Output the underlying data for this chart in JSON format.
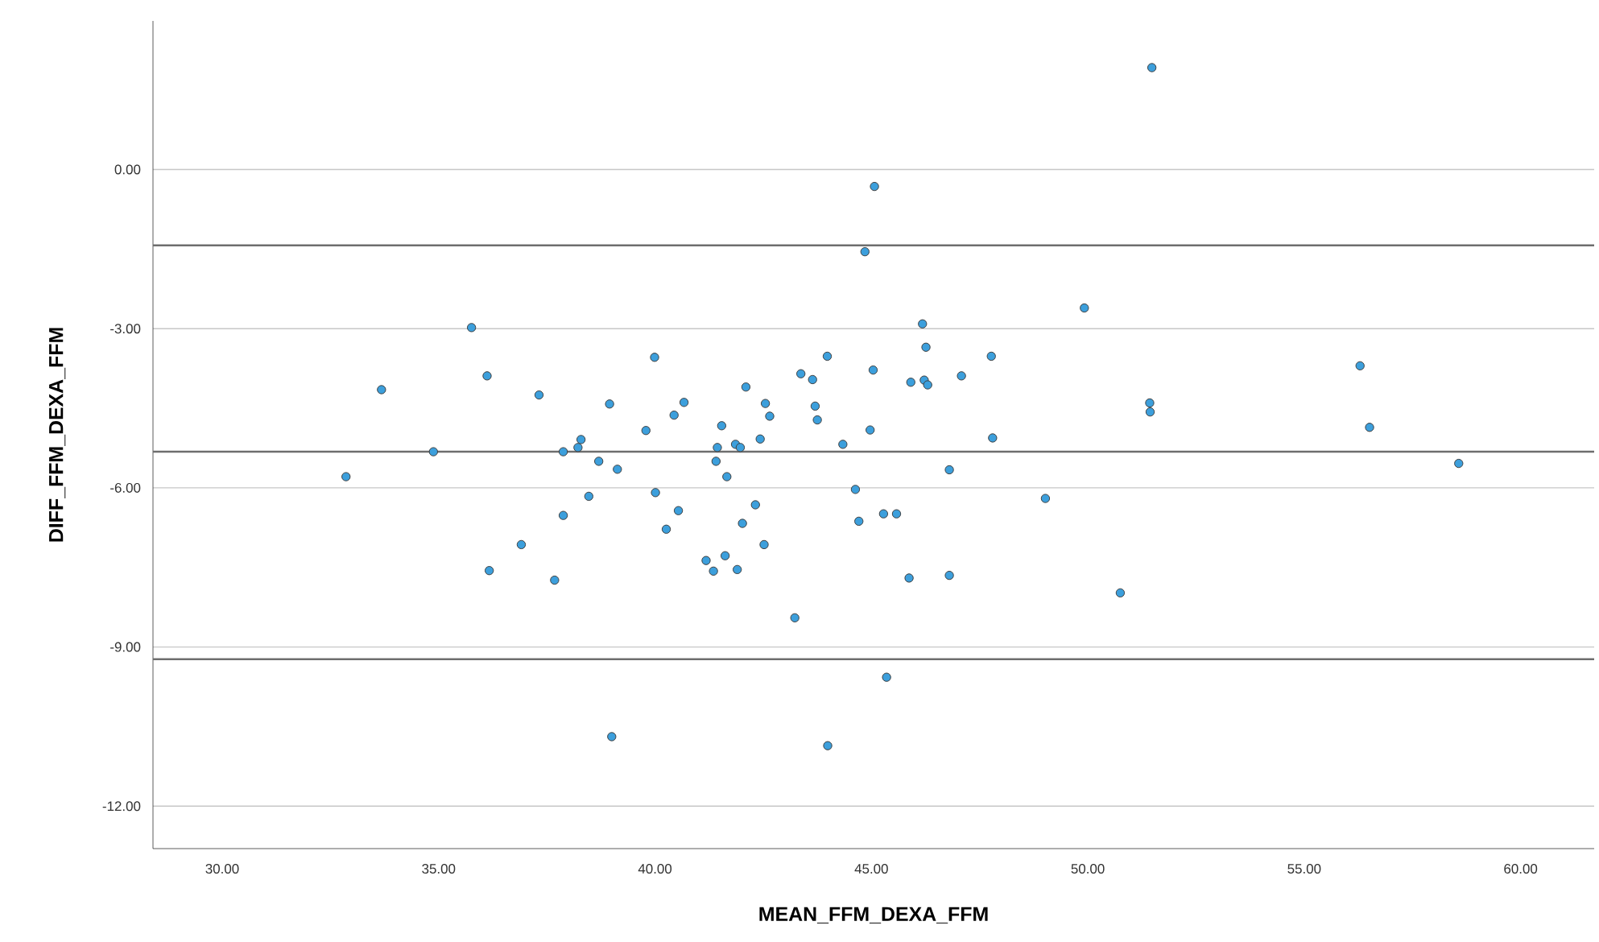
{
  "chart_data": {
    "type": "scatter",
    "xlabel": "MEAN_FFM_DEXA_FFM",
    "ylabel": "DIFF_FFM_DEXA_FFM",
    "xlim": [
      28.4,
      61.7
    ],
    "ylim": [
      -12.8,
      2.8
    ],
    "xticks": [
      {
        "value": 30,
        "label": "30.00"
      },
      {
        "value": 35,
        "label": "35.00"
      },
      {
        "value": 40,
        "label": "40.00"
      },
      {
        "value": 45,
        "label": "45.00"
      },
      {
        "value": 50,
        "label": "50.00"
      },
      {
        "value": 55,
        "label": "55.00"
      },
      {
        "value": 60,
        "label": "60.00"
      }
    ],
    "yticks": [
      {
        "value": -12,
        "label": "-12.00"
      },
      {
        "value": -9,
        "label": "-9.00"
      },
      {
        "value": -6,
        "label": "-6.00"
      },
      {
        "value": -3,
        "label": "-3.00"
      },
      {
        "value": 0,
        "label": "0.00"
      }
    ],
    "grid": "y",
    "marker": "circle",
    "ref_lines": [
      {
        "axis": "y",
        "value": -1.43,
        "color": "#6e6e6e"
      },
      {
        "axis": "y",
        "value": -5.32,
        "color": "#6e6e6e"
      },
      {
        "axis": "y",
        "value": -9.23,
        "color": "#6e6e6e"
      }
    ],
    "series": [
      {
        "color": "#3c9fdc",
        "x": [
          32.86,
          33.68,
          34.88,
          35.76,
          36.12,
          36.17,
          36.91,
          37.32,
          37.68,
          37.88,
          37.88,
          38.22,
          38.29,
          38.47,
          38.7,
          38.95,
          39.0,
          39.13,
          39.79,
          39.99,
          40.01,
          40.26,
          40.44,
          40.54,
          40.67,
          41.18,
          41.35,
          41.41,
          41.44,
          41.54,
          41.62,
          41.66,
          41.86,
          41.97,
          41.9,
          42.02,
          42.1,
          42.32,
          42.43,
          42.52,
          42.55,
          42.65,
          43.23,
          43.37,
          43.64,
          43.7,
          43.75,
          43.98,
          43.99,
          44.34,
          44.63,
          44.71,
          44.85,
          44.97,
          45.04,
          45.07,
          45.28,
          45.35,
          45.58,
          45.87,
          45.91,
          46.18,
          46.22,
          46.26,
          46.3,
          46.8,
          46.8,
          47.08,
          47.77,
          47.8,
          49.02,
          49.92,
          50.75,
          51.43,
          51.44,
          51.48,
          56.29,
          56.51,
          58.57
        ],
        "values": [
          -5.79,
          -4.15,
          -5.32,
          -2.98,
          -3.89,
          -7.56,
          -7.07,
          -4.25,
          -7.74,
          -5.32,
          -6.52,
          -5.24,
          -5.09,
          -6.16,
          -5.5,
          -4.42,
          -10.69,
          -5.65,
          -4.92,
          -3.54,
          -6.09,
          -6.78,
          -4.63,
          -6.43,
          -4.39,
          -7.37,
          -7.57,
          -5.5,
          -5.24,
          -4.83,
          -7.28,
          -5.79,
          -5.18,
          -5.24,
          -7.54,
          -6.67,
          -4.1,
          -6.32,
          -5.08,
          -7.07,
          -4.41,
          -4.65,
          -8.45,
          -3.85,
          -3.96,
          -4.46,
          -4.72,
          -3.52,
          -10.86,
          -5.18,
          -6.03,
          -6.63,
          -1.55,
          -4.91,
          -3.78,
          -0.32,
          -6.49,
          -9.57,
          -6.49,
          -7.7,
          -4.01,
          -2.91,
          -3.97,
          -3.35,
          -4.06,
          -5.66,
          -7.65,
          -3.89,
          -3.52,
          -5.06,
          -6.2,
          -2.61,
          -7.98,
          -4.4,
          -4.57,
          1.92,
          -3.7,
          -4.86,
          -5.54
        ]
      }
    ]
  }
}
